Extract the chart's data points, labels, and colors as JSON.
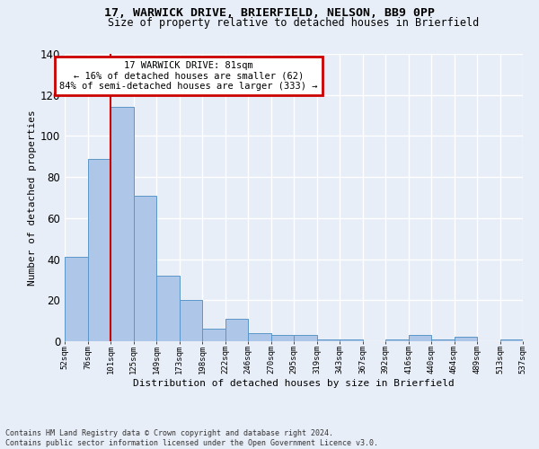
{
  "title1": "17, WARWICK DRIVE, BRIERFIELD, NELSON, BB9 0PP",
  "title2": "Size of property relative to detached houses in Brierfield",
  "xlabel": "Distribution of detached houses by size in Brierfield",
  "ylabel": "Number of detached properties",
  "footnote1": "Contains HM Land Registry data © Crown copyright and database right 2024.",
  "footnote2": "Contains public sector information licensed under the Open Government Licence v3.0.",
  "bar_values": [
    41,
    89,
    114,
    71,
    32,
    20,
    6,
    11,
    4,
    3,
    3,
    1,
    1,
    0,
    1,
    3,
    1,
    2,
    0,
    1
  ],
  "bar_labels": [
    "52sqm",
    "76sqm",
    "101sqm",
    "125sqm",
    "149sqm",
    "173sqm",
    "198sqm",
    "222sqm",
    "246sqm",
    "270sqm",
    "295sqm",
    "319sqm",
    "343sqm",
    "367sqm",
    "392sqm",
    "416sqm",
    "440sqm",
    "464sqm",
    "489sqm",
    "513sqm",
    "537sqm"
  ],
  "bar_color": "#aec6e8",
  "bar_edge_color": "#5a96c8",
  "annotation_title": "17 WARWICK DRIVE: 81sqm",
  "annotation_line1": "← 16% of detached houses are smaller (62)",
  "annotation_line2": "84% of semi-detached houses are larger (333) →",
  "annotation_box_color": "#cc0000",
  "red_line_x": 1.5,
  "ylim": [
    0,
    140
  ],
  "yticks": [
    0,
    20,
    40,
    60,
    80,
    100,
    120,
    140
  ],
  "background_color": "#e8eef8",
  "grid_color": "#ffffff",
  "bar_width": 1.0
}
